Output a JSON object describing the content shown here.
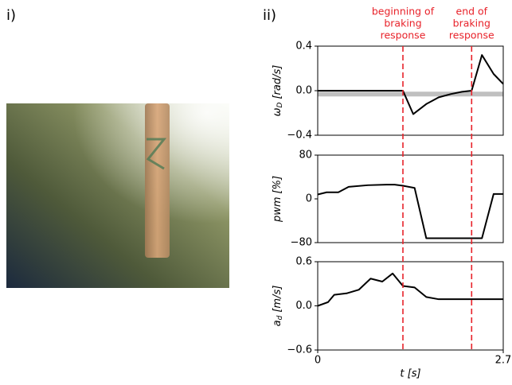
{
  "panels": {
    "left": "i)",
    "right": "ii)"
  },
  "braking": {
    "start": 1.24,
    "end": 2.24,
    "color": "#e8222a",
    "start_label": [
      "beginning of",
      "braking",
      "response"
    ],
    "end_label": [
      "end of",
      "braking",
      "response"
    ]
  },
  "chart_data": [
    {
      "type": "line",
      "ylabel": "ω",
      "ylabel_sub": "D",
      "ylabel_unit": "[rad/s]",
      "x": [
        0,
        1.24,
        1.39,
        1.58,
        1.76,
        1.94,
        2.1,
        2.24,
        2.39,
        2.56,
        2.7
      ],
      "values": [
        0,
        0,
        -0.21,
        -0.12,
        -0.06,
        -0.03,
        -0.01,
        0,
        0.32,
        0.15,
        0.06
      ],
      "color": "#000000",
      "hline": -0.03,
      "hline_color": "#c0c0c0",
      "xlim": [
        0,
        2.7
      ],
      "ylim": [
        -0.4,
        0.4
      ],
      "yticks": [
        0.4,
        {
          "value": 0,
          "label": "0.0"
        },
        {
          "value": -0.4,
          "label": "−0.4"
        }
      ]
    },
    {
      "type": "line",
      "ylabel": "pwm",
      "ylabel_unit": "[%]",
      "x": [
        0,
        0.13,
        0.3,
        0.45,
        0.73,
        1.0,
        1.12,
        1.24,
        1.41,
        1.58,
        2.39,
        2.56,
        2.7
      ],
      "values": [
        8,
        12,
        12,
        22,
        25,
        26,
        26,
        24,
        20,
        -72,
        -72,
        9,
        9
      ],
      "color": "#000000",
      "xlim": [
        0,
        2.7
      ],
      "ylim": [
        -80,
        80
      ],
      "yticks": [
        80,
        0,
        {
          "value": -80,
          "label": "−80"
        }
      ]
    },
    {
      "type": "line",
      "ylabel": "a",
      "ylabel_sub": "d",
      "ylabel_unit": "[m/s]",
      "xlabel": "t [s]",
      "x": [
        0,
        0.15,
        0.24,
        0.42,
        0.6,
        0.77,
        0.94,
        1.09,
        1.24,
        1.41,
        1.58,
        1.76,
        2.7
      ],
      "values": [
        0,
        0.05,
        0.15,
        0.17,
        0.22,
        0.37,
        0.33,
        0.44,
        0.27,
        0.25,
        0.12,
        0.09,
        0.09
      ],
      "color": "#000000",
      "xlim": [
        0,
        2.7
      ],
      "ylim": [
        -0.6,
        0.6
      ],
      "xticks": [
        0,
        2.7
      ],
      "yticks": [
        0.6,
        {
          "value": 0,
          "label": "0.0"
        },
        {
          "value": -0.6,
          "label": "−0.6"
        }
      ]
    }
  ]
}
